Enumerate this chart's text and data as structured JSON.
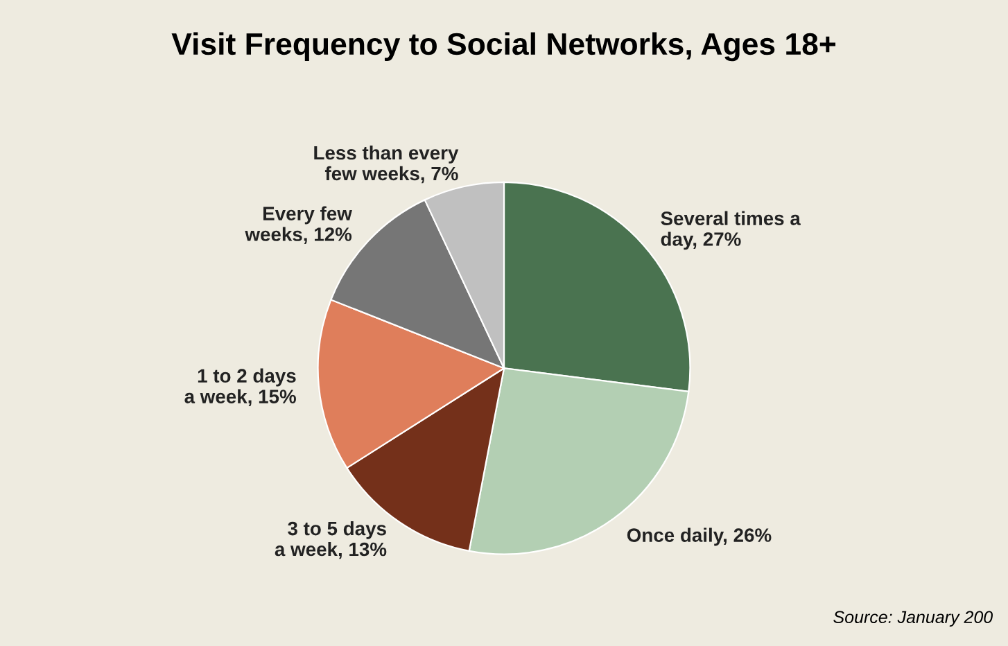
{
  "chart_data": {
    "type": "pie",
    "title": "Visit Frequency to Social Networks, Ages 18+",
    "categories": [
      "Several times a day",
      "Once daily",
      "3 to 5 days a week",
      "1 to 2 days a week",
      "Every few weeks",
      "Less than every few weeks"
    ],
    "values": [
      27,
      26,
      13,
      15,
      12,
      7
    ],
    "value_labels": [
      "27%",
      "26%",
      "13%",
      "15%",
      "12%",
      "7%"
    ],
    "colors": [
      "#4a7350",
      "#b3cfb3",
      "#74301a",
      "#df7e5b",
      "#767676",
      "#c0c0c0"
    ],
    "annotations": [
      "Source: January 200"
    ]
  }
}
